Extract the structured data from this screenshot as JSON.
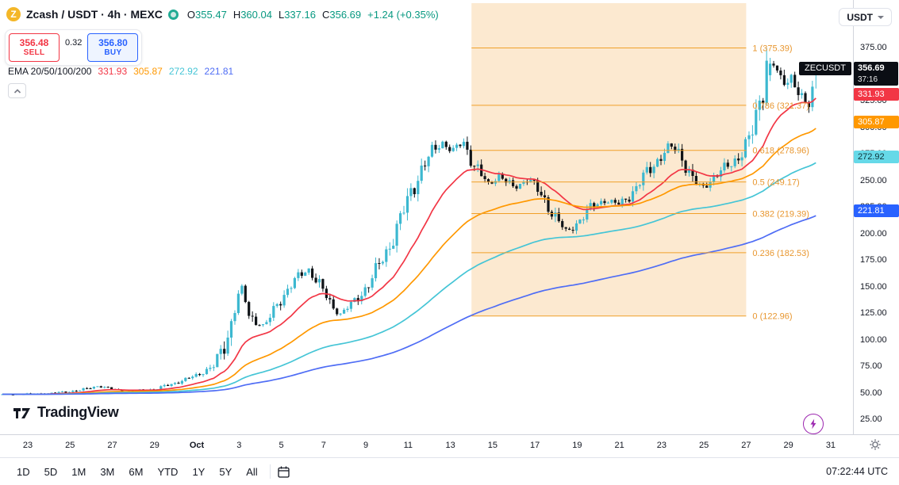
{
  "header": {
    "symbol_title": "Zcash / USDT · 4h · MEXC",
    "ohlc": {
      "o_label": "O",
      "o": "355.47",
      "h_label": "H",
      "h": "360.04",
      "l_label": "L",
      "l": "337.16",
      "c_label": "C",
      "c": "356.69",
      "change": "+1.24 (+0.35%)"
    },
    "currency_button": "USDT",
    "ohlc_color": "#089981"
  },
  "trade_panel": {
    "sell_price": "356.48",
    "sell_label": "SELL",
    "sell_color": "#f23645",
    "spread": "0.32",
    "buy_price": "356.80",
    "buy_label": "BUY",
    "buy_color": "#2962ff"
  },
  "indicator": {
    "label": "EMA 20/50/100/200",
    "values": [
      "331.93",
      "305.87",
      "272.92",
      "221.81"
    ],
    "colors": [
      "#f23645",
      "#ff9800",
      "#45c5d6",
      "#4f6df5"
    ]
  },
  "axis_tags": {
    "current": {
      "symbol": "ZECUSDT",
      "price_text": "356.69",
      "countdown": "37:16",
      "bg": "#0b0e14",
      "text_color": "#ffffff"
    },
    "ema_tags": [
      {
        "name": "ema20",
        "text": "331.93",
        "price": 331.93,
        "bg": "#f23645",
        "color": "#ffffff"
      },
      {
        "name": "ema50",
        "text": "305.87",
        "price": 305.87,
        "bg": "#ff9800",
        "color": "#ffffff"
      },
      {
        "name": "ema100",
        "text": "272.92",
        "price": 272.92,
        "bg": "#66d9e8",
        "color": "#10333a"
      },
      {
        "name": "ema200",
        "text": "221.81",
        "price": 221.81,
        "bg": "#2962ff",
        "color": "#ffffff"
      }
    ]
  },
  "chart_data": {
    "type": "candlestick",
    "title": "Zcash / USDT · 4h · MEXC",
    "symbol": "ZECUSDT",
    "exchange": "MEXC",
    "interval": "4h",
    "current_price": 356.69,
    "last_candle": {
      "o": 355.47,
      "h": 360.04,
      "l": 337.16,
      "c": 356.69
    },
    "price_axis_ticks": [
      375,
      350,
      325,
      300,
      275,
      250,
      225,
      200,
      175,
      150,
      125,
      100,
      75,
      50,
      25
    ],
    "time_axis_ticks": [
      {
        "label": "23",
        "day": 0
      },
      {
        "label": "25",
        "day": 2
      },
      {
        "label": "27",
        "day": 4
      },
      {
        "label": "29",
        "day": 6
      },
      {
        "label": "Oct",
        "day": 8,
        "major": true
      },
      {
        "label": "3",
        "day": 10
      },
      {
        "label": "5",
        "day": 12
      },
      {
        "label": "7",
        "day": 14
      },
      {
        "label": "9",
        "day": 16
      },
      {
        "label": "11",
        "day": 18
      },
      {
        "label": "13",
        "day": 20
      },
      {
        "label": "15",
        "day": 22
      },
      {
        "label": "17",
        "day": 24
      },
      {
        "label": "19",
        "day": 26
      },
      {
        "label": "21",
        "day": 28
      },
      {
        "label": "23",
        "day": 30
      },
      {
        "label": "25",
        "day": 32
      },
      {
        "label": "27",
        "day": 34
      },
      {
        "label": "29",
        "day": 36
      },
      {
        "label": "31",
        "day": 38
      }
    ],
    "day_range": [
      -1.2,
      37.33
    ],
    "price_path": [
      [
        -1.2,
        49
      ],
      [
        1,
        50
      ],
      [
        2.5,
        53
      ],
      [
        3.3,
        57
      ],
      [
        4.5,
        52
      ],
      [
        6,
        54
      ],
      [
        7,
        60
      ],
      [
        8,
        67
      ],
      [
        8.8,
        76
      ],
      [
        9.4,
        98
      ],
      [
        9.8,
        132
      ],
      [
        10.1,
        152
      ],
      [
        10.5,
        121
      ],
      [
        11.2,
        113
      ],
      [
        12,
        140
      ],
      [
        12.7,
        158
      ],
      [
        13.3,
        167
      ],
      [
        13.9,
        149
      ],
      [
        14.4,
        132
      ],
      [
        14.8,
        125
      ],
      [
        15.5,
        137
      ],
      [
        16.1,
        152
      ],
      [
        16.6,
        170
      ],
      [
        17.1,
        188
      ],
      [
        17.6,
        212
      ],
      [
        18.1,
        238
      ],
      [
        18.6,
        260
      ],
      [
        19.1,
        276
      ],
      [
        19.6,
        287
      ],
      [
        20.1,
        278
      ],
      [
        20.6,
        287
      ],
      [
        21.2,
        263
      ],
      [
        21.8,
        246
      ],
      [
        22.3,
        256
      ],
      [
        23,
        243
      ],
      [
        23.7,
        253
      ],
      [
        24.3,
        236
      ],
      [
        25,
        216
      ],
      [
        25.5,
        201
      ],
      [
        26.1,
        213
      ],
      [
        26.7,
        226
      ],
      [
        27.3,
        232
      ],
      [
        28,
        228
      ],
      [
        28.7,
        241
      ],
      [
        29.3,
        258
      ],
      [
        29.9,
        272
      ],
      [
        30.4,
        283
      ],
      [
        30.9,
        276
      ],
      [
        31.4,
        253
      ],
      [
        31.9,
        243
      ],
      [
        32.4,
        253
      ],
      [
        33,
        262
      ],
      [
        33.6,
        272
      ],
      [
        34.2,
        289
      ],
      [
        34.6,
        322
      ],
      [
        35,
        354
      ],
      [
        35.3,
        360
      ],
      [
        35.7,
        342
      ],
      [
        36.1,
        350
      ],
      [
        36.5,
        332
      ],
      [
        36.9,
        318
      ],
      [
        37.1,
        334
      ],
      [
        37.33,
        356.69
      ]
    ],
    "spike_high": {
      "day": 35.0,
      "price": 375.39
    },
    "spike_low": {
      "day": 14.8,
      "price": 122.96
    },
    "colors": {
      "up": "#3cb8d0",
      "down": "#101418"
    },
    "ema_periods": [
      20,
      50,
      100,
      200
    ],
    "ema_values": [
      331.93,
      305.87,
      272.92,
      221.81
    ],
    "ema_colors": [
      "#f23645",
      "#ff9800",
      "#45c5d6",
      "#4f6df5"
    ],
    "fib": {
      "zone_days": [
        21,
        34
      ],
      "line_color": "#f0a029",
      "label_color": "#e8962e",
      "shade_color": "rgba(246,176,86,0.28)",
      "levels": [
        {
          "level": "1",
          "price": 375.39
        },
        {
          "level": "0.786",
          "price": 321.37
        },
        {
          "level": "0.618",
          "price": 278.96
        },
        {
          "level": "0.5",
          "price": 249.17
        },
        {
          "level": "0.382",
          "price": 219.39
        },
        {
          "level": "0.236",
          "price": 182.53
        },
        {
          "level": "0",
          "price": 122.96
        }
      ]
    }
  },
  "footer": {
    "ranges": [
      "1D",
      "5D",
      "1M",
      "3M",
      "6M",
      "YTD",
      "1Y",
      "5Y",
      "All"
    ],
    "clock": "07:22:44 UTC"
  },
  "logo": {
    "text": "TradingView"
  }
}
